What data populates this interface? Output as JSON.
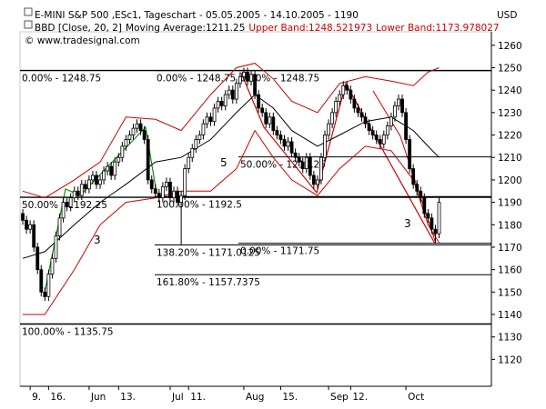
{
  "chart_data": {
    "type": "candlestick",
    "title": "E-MINI S&P 500 ,ESc1, Tageschart - 05.05.2005 - 14.10.2005 - 1190",
    "indicator": "BBD [Close, 20, 2]",
    "copyright": "© www.tradesignal.com",
    "y_axis_label": "USD",
    "xlim": [
      -0.75,
      127.2
    ],
    "ylim": [
      1108,
      1266
    ],
    "yticks": [
      1120,
      1130,
      1140,
      1150,
      1160,
      1170,
      1180,
      1190,
      1200,
      1210,
      1220,
      1230,
      1240,
      1250,
      1260
    ],
    "xticks": [
      {
        "value": 2,
        "label": "9."
      },
      {
        "value": 7,
        "label": "16."
      },
      {
        "value": 18,
        "label": "Jun"
      },
      {
        "value": 26,
        "label": "13."
      },
      {
        "value": 40,
        "label": "Jul"
      },
      {
        "value": 45,
        "label": "11."
      },
      {
        "value": 60,
        "label": "Aug"
      },
      {
        "value": 70,
        "label": "15."
      },
      {
        "value": 83,
        "label": "Sep"
      },
      {
        "value": 89,
        "label": "12."
      },
      {
        "value": 104,
        "label": "Oct"
      }
    ],
    "bar_color": "#000000",
    "open": [
      1185,
      1182,
      1178,
      1180,
      1170,
      1160,
      1150,
      1148,
      1158,
      1165,
      1175,
      1183,
      1190,
      1188,
      1192,
      1195,
      1193,
      1198,
      1196,
      1200,
      1202,
      1198,
      1200,
      1204,
      1206,
      1202,
      1208,
      1210,
      1215,
      1218,
      1220,
      1223,
      1225,
      1222,
      1218,
      1200,
      1196,
      1194,
      1192,
      1197,
      1199,
      1192,
      1195,
      1190,
      1193,
      1205,
      1210,
      1214,
      1218,
      1220,
      1225,
      1228,
      1226,
      1232,
      1235,
      1233,
      1238,
      1240,
      1236,
      1243,
      1246,
      1248,
      1244,
      1247,
      1238,
      1232,
      1230,
      1225,
      1228,
      1222,
      1220,
      1218,
      1215,
      1217,
      1212,
      1210,
      1208,
      1205,
      1210,
      1202,
      1198,
      1200,
      1210,
      1220,
      1225,
      1230,
      1235,
      1238,
      1242,
      1240,
      1236,
      1232,
      1230,
      1228,
      1225,
      1222,
      1220,
      1218,
      1216,
      1220,
      1224,
      1228,
      1233,
      1236,
      1230,
      1218,
      1205,
      1198,
      1195,
      1192,
      1185,
      1183,
      1178,
      1176
    ],
    "high": [
      1187,
      1184,
      1182,
      1182,
      1172,
      1162,
      1152,
      1160,
      1167,
      1177,
      1185,
      1192,
      1192,
      1194,
      1197,
      1197,
      1200,
      1200,
      1202,
      1204,
      1204,
      1202,
      1206,
      1208,
      1208,
      1210,
      1212,
      1217,
      1220,
      1222,
      1225,
      1227,
      1227,
      1224,
      1220,
      1202,
      1198,
      1196,
      1199,
      1201,
      1201,
      1197,
      1197,
      1195,
      1207,
      1212,
      1216,
      1220,
      1222,
      1227,
      1230,
      1230,
      1234,
      1237,
      1237,
      1240,
      1242,
      1242,
      1245,
      1248,
      1250,
      1250,
      1249,
      1249,
      1240,
      1234,
      1232,
      1230,
      1230,
      1224,
      1222,
      1220,
      1219,
      1219,
      1214,
      1212,
      1210,
      1212,
      1212,
      1204,
      1202,
      1212,
      1222,
      1227,
      1232,
      1237,
      1240,
      1244,
      1244,
      1242,
      1238,
      1234,
      1232,
      1230,
      1227,
      1224,
      1222,
      1220,
      1222,
      1226,
      1230,
      1235,
      1238,
      1238,
      1232,
      1220,
      1207,
      1200,
      1197,
      1194,
      1187,
      1185,
      1180,
      1192
    ],
    "low": [
      1180,
      1176,
      1176,
      1168,
      1158,
      1148,
      1146,
      1146,
      1156,
      1163,
      1173,
      1181,
      1186,
      1186,
      1190,
      1191,
      1191,
      1194,
      1194,
      1198,
      1196,
      1196,
      1198,
      1202,
      1200,
      1200,
      1206,
      1208,
      1213,
      1216,
      1218,
      1221,
      1220,
      1216,
      1198,
      1194,
      1192,
      1190,
      1190,
      1195,
      1190,
      1190,
      1188,
      1171,
      1191,
      1203,
      1208,
      1212,
      1216,
      1218,
      1223,
      1224,
      1224,
      1230,
      1231,
      1231,
      1236,
      1234,
      1234,
      1241,
      1244,
      1242,
      1242,
      1236,
      1230,
      1228,
      1223,
      1223,
      1220,
      1218,
      1216,
      1213,
      1213,
      1210,
      1208,
      1206,
      1203,
      1203,
      1200,
      1196,
      1196,
      1198,
      1208,
      1218,
      1223,
      1228,
      1233,
      1236,
      1238,
      1234,
      1230,
      1228,
      1226,
      1223,
      1220,
      1218,
      1216,
      1214,
      1214,
      1218,
      1222,
      1226,
      1231,
      1228,
      1216,
      1203,
      1196,
      1193,
      1190,
      1183,
      1181,
      1176,
      1171.75,
      1174
    ],
    "close": [
      1182,
      1178,
      1180,
      1170,
      1160,
      1150,
      1148,
      1158,
      1165,
      1175,
      1183,
      1190,
      1188,
      1192,
      1195,
      1193,
      1198,
      1196,
      1200,
      1202,
      1198,
      1200,
      1204,
      1206,
      1202,
      1208,
      1210,
      1215,
      1218,
      1220,
      1223,
      1225,
      1222,
      1218,
      1200,
      1196,
      1194,
      1192,
      1197,
      1199,
      1192,
      1195,
      1190,
      1193,
      1205,
      1210,
      1214,
      1218,
      1220,
      1225,
      1228,
      1226,
      1232,
      1235,
      1233,
      1238,
      1240,
      1236,
      1243,
      1246,
      1248,
      1244,
      1247,
      1238,
      1232,
      1230,
      1225,
      1228,
      1222,
      1220,
      1218,
      1215,
      1217,
      1212,
      1210,
      1208,
      1205,
      1210,
      1202,
      1198,
      1200,
      1210,
      1220,
      1225,
      1230,
      1235,
      1238,
      1242,
      1240,
      1236,
      1232,
      1230,
      1228,
      1225,
      1222,
      1220,
      1218,
      1216,
      1220,
      1224,
      1228,
      1233,
      1236,
      1230,
      1218,
      1205,
      1198,
      1195,
      1192,
      1185,
      1183,
      1178,
      1176,
      1190
    ],
    "series": [
      {
        "name": "Moving Average:1211.25",
        "color": "#000000",
        "x": [
          0,
          6,
          14,
          21,
          28,
          36,
          43,
          51,
          58,
          63,
          68,
          73,
          80,
          86,
          93,
          100,
          106,
          110,
          113
        ],
        "values": [
          1165,
          1168,
          1180,
          1190,
          1198,
          1208,
          1210,
          1218,
          1230,
          1238,
          1232,
          1222,
          1215,
          1220,
          1226,
          1228,
          1222,
          1215,
          1210
        ]
      },
      {
        "name": "Upper Band:1248.521973",
        "color": "#cc0000",
        "x": [
          0,
          6,
          14,
          21,
          28,
          36,
          43,
          51,
          58,
          63,
          68,
          73,
          80,
          86,
          93,
          100,
          106,
          110,
          113
        ],
        "values": [
          1195,
          1192,
          1200,
          1208,
          1228,
          1227,
          1222,
          1238,
          1250,
          1252,
          1245,
          1235,
          1230,
          1243,
          1246,
          1244,
          1242,
          1248,
          1250
        ]
      },
      {
        "name": "Lower Band:1173.978027",
        "color": "#cc0000",
        "x": [
          0,
          6,
          14,
          21,
          28,
          36,
          43,
          51,
          58,
          63,
          68,
          73,
          80,
          86,
          93,
          100,
          106,
          110,
          113
        ],
        "values": [
          1140,
          1140,
          1160,
          1180,
          1190,
          1192,
          1195,
          1195,
          1205,
          1222,
          1210,
          1200,
          1193,
          1205,
          1215,
          1213,
          1200,
          1180,
          1172
        ]
      }
    ],
    "levels": [
      {
        "label": "0.00% - 1248.75",
        "value": 1248.75
      },
      {
        "label": "0.00% - 1248.75",
        "value": 1248.75
      },
      {
        "label": "0.00% - 1248.75",
        "value": 1248.75
      },
      {
        "label": "50.00% - 1192.25",
        "value": 1192.25
      },
      {
        "label": "100.00% - 1192.5",
        "value": 1192.5
      },
      {
        "label": "50.00% - 1210.25",
        "value": 1210.25
      },
      {
        "label": "138.20% - 1171.0125",
        "value": 1171.0125
      },
      {
        "label": "0.00% - 1171.75",
        "value": 1171.75
      },
      {
        "label": "161.80% - 1157.7375",
        "value": 1157.7375
      },
      {
        "label": "100.00% - 1135.75",
        "value": 1135.75
      }
    ],
    "wave_labels": [
      "3",
      "5",
      "3"
    ]
  }
}
